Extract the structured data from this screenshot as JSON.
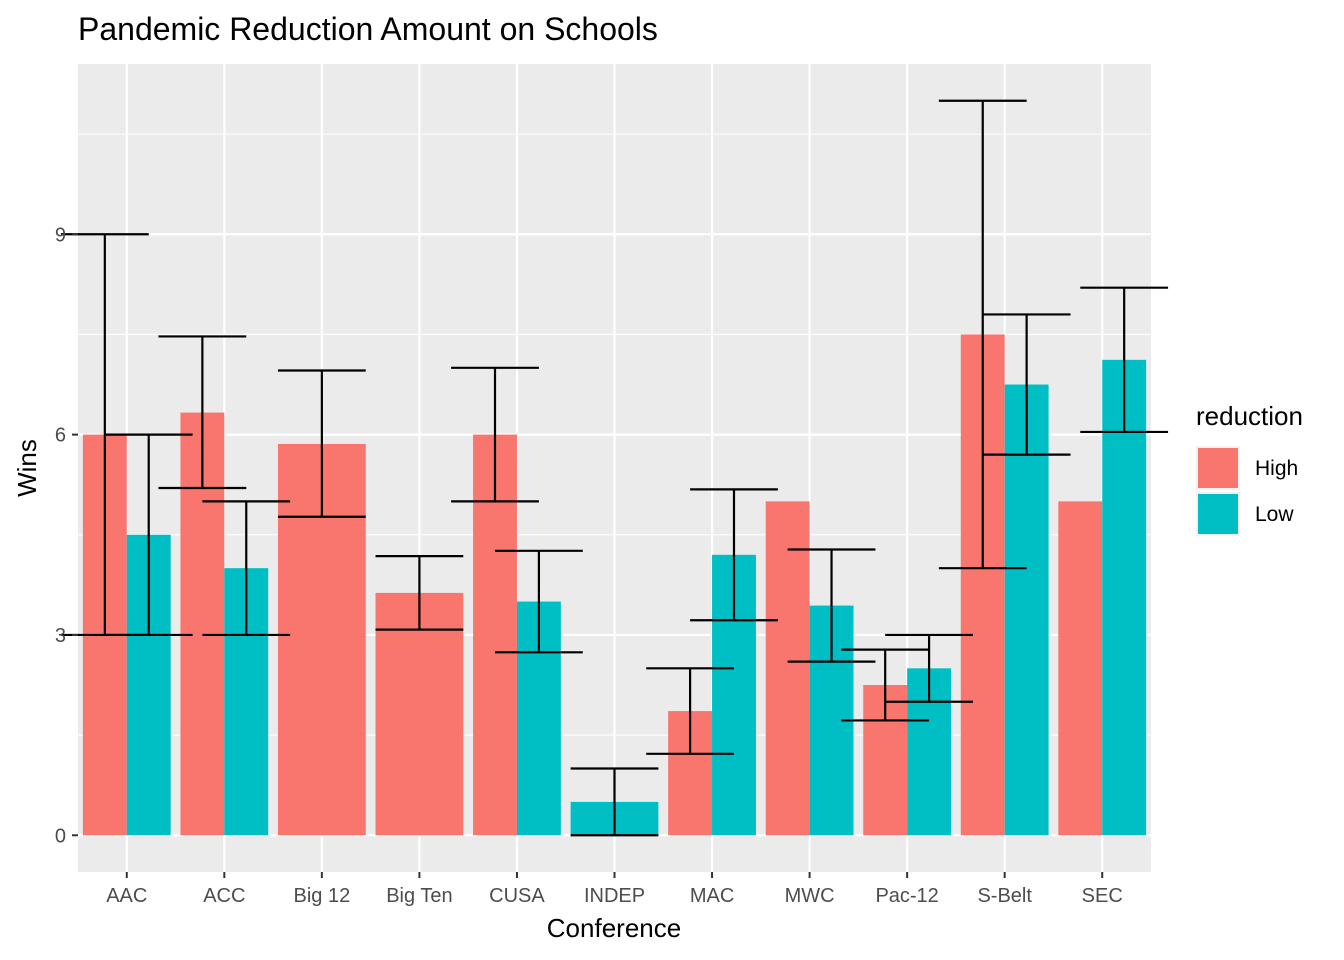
{
  "chart_data": {
    "type": "bar",
    "title": "Pandemic Reduction Amount on Schools",
    "xlabel": "Conference",
    "ylabel": "Wins",
    "ylim": [
      -0.55,
      11.55
    ],
    "yticks": [
      0,
      3,
      6,
      9
    ],
    "ytick_labels": [
      "0",
      "3",
      "6",
      "9"
    ],
    "grid": true,
    "legend": {
      "title": "reduction",
      "position": "right"
    },
    "categories": [
      "AAC",
      "ACC",
      "Big 12",
      "Big Ten",
      "CUSA",
      "INDEP",
      "MAC",
      "MWC",
      "Pac-12",
      "S-Belt",
      "SEC"
    ],
    "series": [
      {
        "name": "High",
        "color": "#F8766D",
        "values": [
          6.0,
          6.33,
          5.86,
          3.63,
          6.0,
          null,
          1.86,
          5.0,
          2.25,
          7.5,
          5.0
        ],
        "error_low": [
          3.0,
          5.2,
          4.77,
          3.08,
          5.0,
          null,
          1.22,
          null,
          1.72,
          4.0,
          null
        ],
        "error_high": [
          9.0,
          7.47,
          6.96,
          4.18,
          7.0,
          null,
          2.5,
          null,
          2.78,
          11.0,
          null
        ]
      },
      {
        "name": "Low",
        "color": "#00BFC4",
        "values": [
          4.5,
          4.0,
          null,
          null,
          3.5,
          0.5,
          4.2,
          3.44,
          2.5,
          6.75,
          7.12
        ],
        "error_low": [
          3.0,
          3.0,
          null,
          null,
          2.74,
          0.0,
          3.22,
          2.6,
          2.0,
          5.7,
          6.04
        ],
        "error_high": [
          6.0,
          5.0,
          null,
          null,
          4.26,
          1.0,
          5.18,
          4.28,
          3.0,
          7.8,
          8.2
        ]
      }
    ]
  }
}
